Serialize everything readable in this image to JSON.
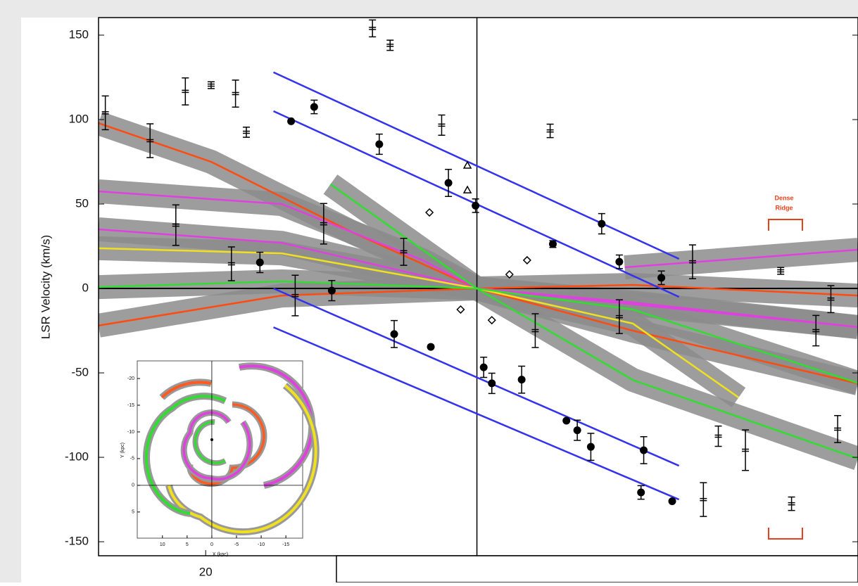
{
  "chart_data": [
    {
      "type": "scatter",
      "ylabel": "LSR Velocity  (km/s)",
      "xlim": [
        27.9,
        -28.1
      ],
      "xticks": [
        20
      ],
      "ylim": [
        -158.3,
        160.4
      ],
      "yticks": [
        -150,
        -100,
        -50,
        0,
        50,
        100,
        150
      ],
      "annotation": [
        "Dense",
        "Ridge"
      ],
      "annotation_color": "#e8401c",
      "points": {
        "x": [
          13.7,
          12.0,
          7.2,
          2.1,
          0.1,
          16.0,
          10.7,
          6.1,
          3.4,
          -0.5,
          -1.1,
          -3.3,
          -5.6,
          -9.2,
          -6.6,
          -7.4,
          -8.4,
          -12.3,
          -12.1,
          -14.4,
          -10.5,
          -13.6,
          27.4,
          21.5,
          19.6,
          17.8,
          17.0,
          7.7,
          6.4,
          2.6,
          -5.4,
          -15.9,
          -22.4,
          -16.7,
          -19.8,
          -23.2,
          -26.1,
          -25.0,
          -17.8,
          -26.6,
          -10.5,
          -4.3,
          13.4,
          24.1,
          22.2,
          18.1,
          11.3,
          5.4,
          3.5,
          -1.1,
          1.2,
          -2.4,
          -3.7,
          0.7,
          0.7
        ],
        "y": [
          99,
          107.5,
          85.4,
          62.5,
          49,
          15.4,
          -1.3,
          -27,
          -34.6,
          -46.7,
          -56.2,
          -54,
          26.3,
          38.3,
          -78.3,
          -84,
          -93.8,
          -95.8,
          -120.8,
          -126,
          15.8,
          6.3,
          104,
          116.7,
          120.4,
          115.4,
          92.5,
          154,
          144,
          96.7,
          93.3,
          15.8,
          10.4,
          -125,
          -95.8,
          -127.5,
          -6.3,
          -25,
          -87.5,
          -83.3,
          -16.7,
          -25,
          -4.2,
          87.5,
          37.5,
          14.6,
          38.3,
          21.7,
          45,
          -18.8,
          -12.5,
          8.3,
          16.7,
          72.9,
          58.3
        ],
        "err": [
          0,
          4,
          6,
          8,
          4,
          6,
          6,
          8,
          0,
          6,
          6,
          8,
          2,
          6,
          0,
          6,
          8,
          8,
          4,
          0,
          4,
          4,
          10,
          8,
          2,
          8,
          3,
          5,
          3,
          6,
          4,
          10,
          2,
          10,
          12,
          4,
          8,
          9,
          6,
          8,
          10,
          10,
          12,
          10,
          12,
          10,
          12,
          8,
          0,
          0,
          0,
          0,
          0,
          0,
          0
        ],
        "marker": [
          "circle",
          "circle",
          "circle",
          "circle",
          "circle",
          "circle",
          "circle",
          "circle",
          "circle",
          "circle",
          "circle",
          "circle",
          "circle",
          "circle",
          "circle",
          "circle",
          "circle",
          "circle",
          "circle",
          "circle",
          "circle",
          "circle",
          "errorbar",
          "errorbar",
          "errorbar",
          "errorbar",
          "errorbar",
          "errorbar",
          "errorbar",
          "errorbar",
          "errorbar",
          "errorbar",
          "errorbar",
          "errorbar",
          "errorbar",
          "errorbar",
          "errorbar",
          "errorbar",
          "errorbar",
          "errorbar",
          "errorbar",
          "errorbar",
          "errorbar",
          "errorbar",
          "errorbar",
          "errorbar",
          "errorbar",
          "errorbar",
          "diamond",
          "diamond",
          "diamond",
          "diamond",
          "diamond",
          "triangle",
          "triangle"
        ]
      },
      "series": [
        {
          "color": "#ff4a10",
          "band": true,
          "x": [
            27.9,
            19.6,
            9.2,
            0,
            -11.5,
            -28.1
          ],
          "y": [
            97.9,
            75,
            33.3,
            0,
            -25,
            -56.3
          ]
        },
        {
          "color": "#ff4a10",
          "band": true,
          "x": [
            27.9,
            14.4,
            0,
            -11.5,
            -28.1
          ],
          "y": [
            -22,
            -4.2,
            0,
            2.1,
            -4.2
          ]
        },
        {
          "color": "#e040e0",
          "band": true,
          "x": [
            27.9,
            14.4,
            4.0,
            0,
            -28.1
          ],
          "y": [
            57.5,
            50,
            16.7,
            0,
            -22.9
          ]
        },
        {
          "color": "#e040e0",
          "band": true,
          "x": [
            27.9,
            14.4,
            0,
            -11.5,
            -28.1
          ],
          "y": [
            35,
            27,
            0,
            -8.3,
            -22.9
          ]
        },
        {
          "color": "#e040e0",
          "band": true,
          "x": [
            -10.9,
            -28.1
          ],
          "y": [
            12.5,
            22.9
          ]
        },
        {
          "color": "#f0e020",
          "band": true,
          "x": [
            27.9,
            14.4,
            0,
            -11.5,
            -19.3
          ],
          "y": [
            23.8,
            20.8,
            0,
            -20.8,
            -64.6
          ]
        },
        {
          "color": "#30dd30",
          "band": true,
          "x": [
            27.9,
            14.4,
            0,
            -11.5,
            -28.1
          ],
          "y": [
            0.8,
            4.2,
            0,
            -12.5,
            -56
          ]
        },
        {
          "color": "#30dd30",
          "band": true,
          "x": [
            10.8,
            0,
            -11.5,
            -28.1
          ],
          "y": [
            61.7,
            0,
            -54.2,
            -100.8
          ]
        },
        {
          "color": "#3333ee",
          "band": false,
          "x": [
            15.0,
            -14.9
          ],
          "y": [
            128,
            17.5
          ]
        },
        {
          "color": "#3333ee",
          "band": false,
          "x": [
            15.0,
            -14.9
          ],
          "y": [
            105,
            -5
          ]
        },
        {
          "color": "#3333ee",
          "band": false,
          "x": [
            15.0,
            -14.9
          ],
          "y": [
            0,
            -105
          ]
        },
        {
          "color": "#3333ee",
          "band": false,
          "x": [
            15.0,
            -14.9
          ],
          "y": [
            -23,
            -125
          ]
        }
      ]
    },
    {
      "type": "inset-map",
      "xlabel": "X (kpc)",
      "ylabel": "Y (kpc)",
      "xlim": [
        15.1,
        -18.4
      ],
      "xticks": [
        10,
        5,
        0,
        -5,
        -10,
        -15
      ],
      "ylim": [
        -23.3,
        9.9
      ],
      "yticks": [
        -20,
        -15,
        -10,
        -5,
        0,
        5
      ]
    }
  ]
}
